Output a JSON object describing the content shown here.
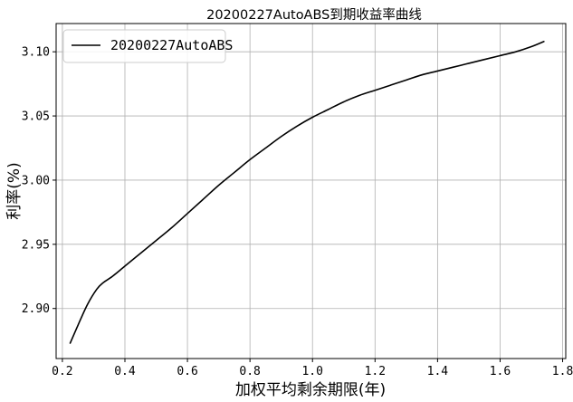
{
  "chart_data": {
    "type": "line",
    "title": "20200227AutoABS到期收益率曲线",
    "xlabel": "加权平均剩余期限(年)",
    "ylabel": "利率(%)",
    "xlim": [
      0.18,
      1.81
    ],
    "ylim": [
      2.861,
      3.122
    ],
    "xticks": [
      0.2,
      0.4,
      0.6,
      0.8,
      1.0,
      1.2,
      1.4,
      1.6,
      1.8
    ],
    "xtick_labels": [
      "0.2",
      "0.4",
      "0.6",
      "0.8",
      "1.0",
      "1.2",
      "1.4",
      "1.6",
      "1.8"
    ],
    "yticks": [
      2.9,
      2.95,
      3.0,
      3.05,
      3.1
    ],
    "ytick_labels": [
      "2.90",
      "2.95",
      "3.00",
      "3.05",
      "3.10"
    ],
    "grid": true,
    "legend_position": "top-left",
    "series": [
      {
        "name": "20200227AutoABS",
        "color": "#000000",
        "x": [
          0.225,
          0.25,
          0.28,
          0.31,
          0.33,
          0.36,
          0.4,
          0.45,
          0.5,
          0.55,
          0.6,
          0.65,
          0.7,
          0.75,
          0.8,
          0.85,
          0.9,
          0.95,
          1.0,
          1.05,
          1.1,
          1.15,
          1.2,
          1.25,
          1.3,
          1.35,
          1.4,
          1.45,
          1.5,
          1.55,
          1.6,
          1.65,
          1.7,
          1.74
        ],
        "y": [
          2.873,
          2.887,
          2.903,
          2.915,
          2.92,
          2.925,
          2.933,
          2.943,
          2.953,
          2.963,
          2.974,
          2.985,
          2.996,
          3.006,
          3.016,
          3.025,
          3.034,
          3.042,
          3.049,
          3.055,
          3.061,
          3.066,
          3.07,
          3.074,
          3.078,
          3.082,
          3.085,
          3.088,
          3.091,
          3.094,
          3.097,
          3.1,
          3.104,
          3.108
        ]
      }
    ]
  }
}
